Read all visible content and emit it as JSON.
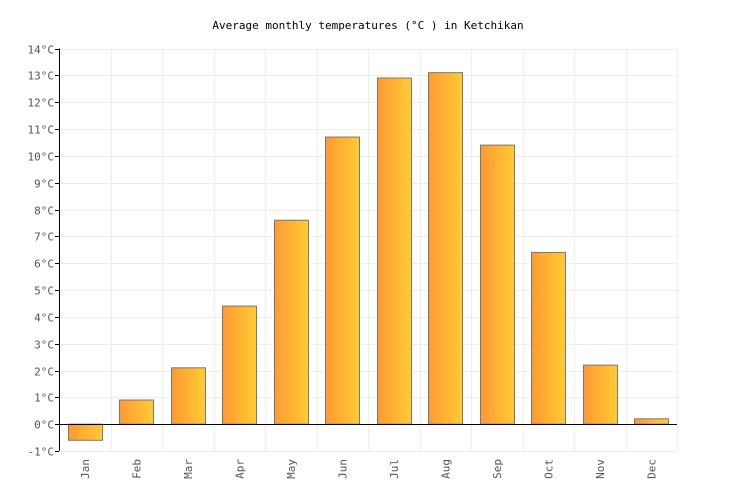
{
  "chart_data": {
    "type": "bar",
    "title": "Average monthly temperatures (°C ) in Ketchikan",
    "xlabel": "",
    "ylabel": "",
    "categories": [
      "Jan",
      "Feb",
      "Mar",
      "Apr",
      "May",
      "Jun",
      "Jul",
      "Aug",
      "Sep",
      "Oct",
      "Nov",
      "Dec"
    ],
    "values": [
      -0.6,
      0.9,
      2.1,
      4.4,
      7.6,
      10.7,
      12.9,
      13.1,
      10.4,
      6.4,
      2.2,
      0.2
    ],
    "ylim": [
      -1,
      14
    ],
    "yticks": [
      "-1°C",
      "0°C",
      "1°C",
      "2°C",
      "3°C",
      "4°C",
      "5°C",
      "6°C",
      "7°C",
      "8°C",
      "9°C",
      "10°C",
      "11°C",
      "12°C",
      "13°C",
      "14°C"
    ],
    "grid": true,
    "legend": "none",
    "colors": {
      "bar_start": "#ff9933",
      "bar_end": "#ffcc33",
      "bar_border": "#777777",
      "grid": "#eeeeee"
    }
  }
}
